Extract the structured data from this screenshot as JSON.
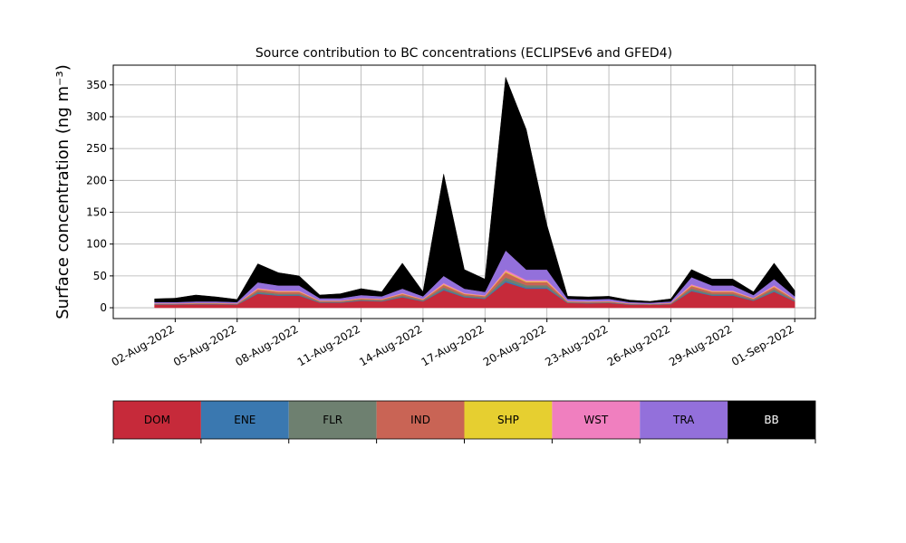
{
  "chart_data": {
    "type": "stacked_area",
    "title": "Source contribution to BC concentrations (ECLIPSEv6 and GFED4)",
    "y_label": "Surface concentration (ng m⁻³)",
    "x": [
      "2022-08-01",
      "2022-08-02",
      "2022-08-03",
      "2022-08-04",
      "2022-08-05",
      "2022-08-06",
      "2022-08-07",
      "2022-08-08",
      "2022-08-09",
      "2022-08-10",
      "2022-08-11",
      "2022-08-12",
      "2022-08-13",
      "2022-08-14",
      "2022-08-15",
      "2022-08-16",
      "2022-08-17",
      "2022-08-18",
      "2022-08-19",
      "2022-08-20",
      "2022-08-21",
      "2022-08-22",
      "2022-08-23",
      "2022-08-24",
      "2022-08-25",
      "2022-08-26",
      "2022-08-27",
      "2022-08-28",
      "2022-08-29",
      "2022-08-30",
      "2022-08-31",
      "2022-09-01"
    ],
    "series": [
      {
        "name": "DOM",
        "color": "#c62a3a",
        "values": [
          5,
          5,
          5.5,
          5.5,
          5,
          22,
          19,
          19,
          8,
          8,
          11,
          10,
          16.5,
          10,
          27.5,
          16.5,
          14,
          40,
          30,
          30,
          7.5,
          7,
          7.5,
          5,
          4.5,
          5.5,
          26,
          19,
          19,
          11,
          25,
          10
        ]
      },
      {
        "name": "ENE",
        "color": "#3a78b0",
        "values": [
          0.3,
          0.3,
          0.3,
          0.3,
          0.3,
          1.2,
          1,
          1,
          0.5,
          0.5,
          0.6,
          0.5,
          0.9,
          0.5,
          1.5,
          0.9,
          0.8,
          2.5,
          1.8,
          1.8,
          0.4,
          0.4,
          0.4,
          0.3,
          0.2,
          0.3,
          1.4,
          1,
          1,
          0.6,
          1.4,
          0.5
        ]
      },
      {
        "name": "FLR",
        "color": "#6e8070",
        "values": [
          0.5,
          0.5,
          0.6,
          0.6,
          0.5,
          2.4,
          2,
          2,
          0.9,
          0.9,
          1.2,
          1.1,
          1.8,
          1.1,
          3,
          1.8,
          1.5,
          5,
          3.6,
          3.6,
          0.8,
          0.8,
          0.8,
          0.5,
          0.5,
          0.6,
          2.9,
          2,
          2,
          1.2,
          2.7,
          1.1
        ]
      },
      {
        "name": "IND",
        "color": "#c96455",
        "values": [
          0.7,
          0.7,
          0.8,
          0.8,
          0.7,
          3.2,
          3,
          3,
          1.2,
          1.2,
          1.6,
          1.4,
          2.4,
          1.4,
          4,
          2.4,
          2,
          8,
          4.8,
          4.8,
          1.1,
          1,
          1.1,
          0.7,
          0.6,
          0.8,
          3.8,
          3,
          3,
          1.6,
          3.6,
          1.4
        ]
      },
      {
        "name": "SHP",
        "color": "#e6cf30",
        "values": [
          0.2,
          0.2,
          0.2,
          0.2,
          0.2,
          0.8,
          0.7,
          0.7,
          0.3,
          0.3,
          0.4,
          0.4,
          0.6,
          0.4,
          1,
          0.6,
          0.5,
          1.5,
          1.2,
          1.2,
          0.3,
          0.3,
          0.3,
          0.2,
          0.2,
          0.2,
          1,
          0.7,
          0.7,
          0.4,
          0.9,
          0.4
        ]
      },
      {
        "name": "WST",
        "color": "#f07fbf",
        "values": [
          0.3,
          0.3,
          0.4,
          0.4,
          0.3,
          1.6,
          1.4,
          1.4,
          0.6,
          0.6,
          0.8,
          0.7,
          1.2,
          0.7,
          2,
          1.2,
          1,
          3,
          2.4,
          2.4,
          0.6,
          0.5,
          0.6,
          0.3,
          0.3,
          0.4,
          1.9,
          1.4,
          1.4,
          0.8,
          1.8,
          0.7
        ]
      },
      {
        "name": "TRA",
        "color": "#9370db",
        "values": [
          2,
          2,
          2.2,
          2.2,
          2,
          8.8,
          7.9,
          7.9,
          3.5,
          3.5,
          4.4,
          3.9,
          6.6,
          3.9,
          11,
          6.6,
          5.2,
          30,
          16.2,
          16.2,
          3.3,
          3,
          3.3,
          2,
          1.7,
          2.2,
          11,
          7.9,
          7.9,
          4.4,
          9.6,
          3.9
        ]
      },
      {
        "name": "BB",
        "color": "#000000",
        "values": [
          5,
          6,
          10,
          7,
          4,
          29,
          20,
          15,
          5,
          7,
          10,
          7,
          40,
          7,
          160,
          30,
          20,
          272,
          220,
          70,
          4,
          4,
          4,
          3,
          2,
          4,
          12,
          10,
          10,
          5,
          25,
          9
        ]
      }
    ],
    "xlim": [
      "2022-07-30",
      "2022-09-02"
    ],
    "xticks": [
      {
        "value": "2022-08-02",
        "label": "02-Aug-2022"
      },
      {
        "value": "2022-08-05",
        "label": "05-Aug-2022"
      },
      {
        "value": "2022-08-08",
        "label": "08-Aug-2022"
      },
      {
        "value": "2022-08-11",
        "label": "11-Aug-2022"
      },
      {
        "value": "2022-08-14",
        "label": "14-Aug-2022"
      },
      {
        "value": "2022-08-17",
        "label": "17-Aug-2022"
      },
      {
        "value": "2022-08-20",
        "label": "20-Aug-2022"
      },
      {
        "value": "2022-08-23",
        "label": "23-Aug-2022"
      },
      {
        "value": "2022-08-26",
        "label": "26-Aug-2022"
      },
      {
        "value": "2022-08-29",
        "label": "29-Aug-2022"
      },
      {
        "value": "2022-09-01",
        "label": "01-Sep-2022"
      }
    ],
    "ylim": [
      -17,
      381
    ],
    "yticks": [
      0,
      50,
      100,
      150,
      200,
      250,
      300,
      350
    ],
    "grid": true,
    "legend": "bottom"
  }
}
